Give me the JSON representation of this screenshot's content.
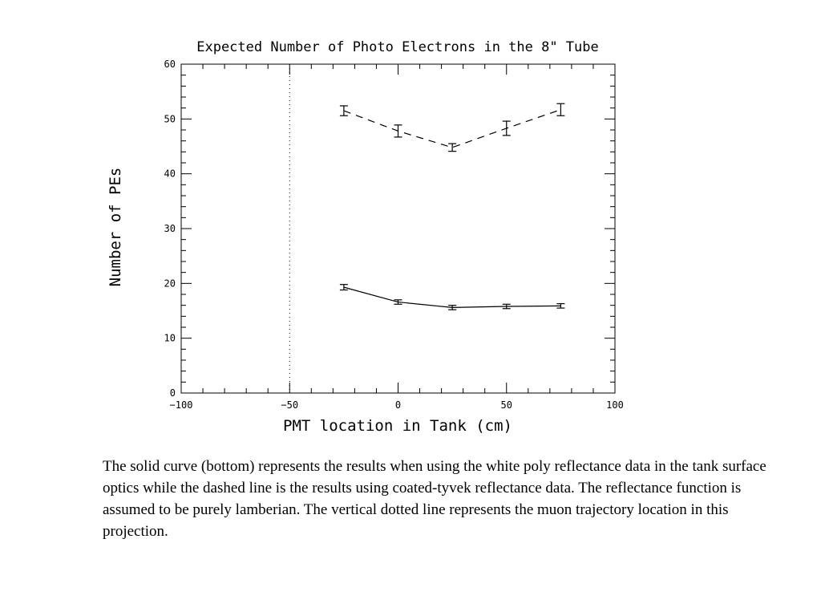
{
  "chart_data": {
    "type": "line",
    "title": "Expected Number of Photo Electrons in the 8\" Tube",
    "xlabel": "PMT location in Tank (cm)",
    "ylabel": "Number of PEs",
    "xlim": [
      -100,
      100
    ],
    "ylim": [
      0,
      60
    ],
    "xticks": [
      -100,
      -50,
      0,
      50,
      100
    ],
    "xtick_labels": [
      "−100",
      "−50",
      "0",
      "50",
      "100"
    ],
    "yticks": [
      0,
      10,
      20,
      30,
      40,
      50,
      60
    ],
    "ytick_labels": [
      "0",
      "10",
      "20",
      "30",
      "40",
      "50",
      "60"
    ],
    "x_minor_step": 10,
    "y_minor_step": 2,
    "vline": {
      "x": -50,
      "style": "dotted"
    },
    "series": [
      {
        "style": "dashed",
        "x": [
          -25,
          0,
          25,
          50,
          75
        ],
        "y": [
          51.5,
          47.8,
          44.8,
          48.3,
          51.7
        ],
        "err": [
          0.9,
          1.1,
          0.7,
          1.3,
          1.1
        ]
      },
      {
        "style": "solid",
        "x": [
          -25,
          0,
          25,
          50,
          75
        ],
        "y": [
          19.3,
          16.6,
          15.6,
          15.8,
          15.9
        ],
        "err": [
          0.5,
          0.4,
          0.4,
          0.4,
          0.4
        ]
      }
    ]
  },
  "caption": "The solid curve (bottom) represents the results when using the white poly reflectance data in the tank surface optics while the dashed line is the results using coated-tyvek reflectance data.  The reflectance function is assumed to be purely lamberian. The vertical dotted line represents the muon trajectory location in this projection."
}
